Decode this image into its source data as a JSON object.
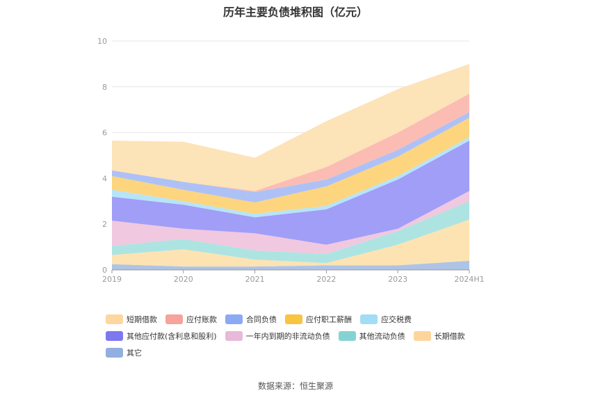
{
  "chart_data": {
    "type": "area",
    "stacked": true,
    "title": "历年主要负债堆积图（亿元）",
    "categories": [
      "2019",
      "2020",
      "2021",
      "2022",
      "2023",
      "2024H1"
    ],
    "ylim": [
      0,
      10
    ],
    "yticks": [
      "0",
      "2",
      "4",
      "6",
      "8",
      "10"
    ],
    "grid": true,
    "legend_position": "bottom",
    "series": [
      {
        "name": "其它",
        "color": "#aec4e6",
        "values": [
          0.25,
          0.15,
          0.15,
          0.2,
          0.2,
          0.4
        ]
      },
      {
        "name": "长期借款",
        "color": "#fde3b2",
        "values": [
          0.4,
          0.75,
          0.3,
          0.1,
          0.9,
          1.8
        ]
      },
      {
        "name": "其他流动负债",
        "color": "#ade4e2",
        "values": [
          0.4,
          0.45,
          0.4,
          0.4,
          0.6,
          0.8
        ]
      },
      {
        "name": "一年内到期的非流动负债",
        "color": "#f0c8e0",
        "values": [
          1.1,
          0.45,
          0.75,
          0.4,
          0.1,
          0.45
        ]
      },
      {
        "name": "其他应付款(含利息和股利)",
        "color": "#a09ef7",
        "values": [
          1.05,
          1.05,
          0.7,
          1.55,
          2.15,
          2.2
        ]
      },
      {
        "name": "应交税费",
        "color": "#b7e4f9",
        "values": [
          0.3,
          0.15,
          0.15,
          0.15,
          0.15,
          0.15
        ]
      },
      {
        "name": "应付职工薪酬",
        "color": "#fcd57e",
        "values": [
          0.6,
          0.5,
          0.5,
          0.85,
          0.85,
          0.85
        ]
      },
      {
        "name": "合同负债",
        "color": "#aec1f6",
        "values": [
          0.25,
          0.35,
          0.45,
          0.3,
          0.3,
          0.25
        ]
      },
      {
        "name": "应付账款",
        "color": "#fbbcb4",
        "values": [
          0.0,
          0.0,
          0.05,
          0.55,
          0.75,
          0.8
        ]
      },
      {
        "name": "短期借款",
        "color": "#fde3b8",
        "values": [
          1.3,
          1.75,
          1.45,
          2.0,
          1.9,
          1.3
        ]
      }
    ],
    "legend": [
      {
        "name": "短期借款",
        "color": "#fdd79f"
      },
      {
        "name": "应付账款",
        "color": "#f7a29a"
      },
      {
        "name": "合同负债",
        "color": "#8ca9f4"
      },
      {
        "name": "应付职工薪酬",
        "color": "#f9c440"
      },
      {
        "name": "应交税费",
        "color": "#a3dcf7"
      },
      {
        "name": "其他应付款(含利息和股利)",
        "color": "#7d78ef"
      },
      {
        "name": "一年内到期的非流动负债",
        "color": "#e8b9d8"
      },
      {
        "name": "其他流动负债",
        "color": "#84d3d2"
      },
      {
        "name": "长期借款",
        "color": "#fdd59c"
      },
      {
        "name": "其它",
        "color": "#93afdf"
      }
    ]
  },
  "source_note": "数据来源：恒生聚源"
}
